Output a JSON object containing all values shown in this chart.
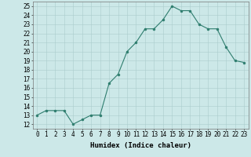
{
  "x": [
    0,
    1,
    2,
    3,
    4,
    5,
    6,
    7,
    8,
    9,
    10,
    11,
    12,
    13,
    14,
    15,
    16,
    17,
    18,
    19,
    20,
    21,
    22,
    23
  ],
  "y": [
    13.0,
    13.5,
    13.5,
    13.5,
    12.0,
    12.5,
    13.0,
    13.0,
    16.5,
    17.5,
    20.0,
    21.0,
    22.5,
    22.5,
    23.5,
    25.0,
    24.5,
    24.5,
    23.0,
    22.5,
    22.5,
    20.5,
    19.0,
    18.8
  ],
  "xlabel": "Humidex (Indice chaleur)",
  "xlim": [
    -0.5,
    23.5
  ],
  "ylim": [
    11.5,
    25.5
  ],
  "yticks": [
    12,
    13,
    14,
    15,
    16,
    17,
    18,
    19,
    20,
    21,
    22,
    23,
    24,
    25
  ],
  "xtick_labels": [
    "0",
    "1",
    "2",
    "3",
    "4",
    "5",
    "6",
    "7",
    "8",
    "9",
    "10",
    "11",
    "12",
    "13",
    "14",
    "15",
    "16",
    "17",
    "18",
    "19",
    "20",
    "21",
    "22",
    "23"
  ],
  "line_color": "#2e7d6e",
  "bg_color": "#cce8e8",
  "grid_color": "#aacccc",
  "label_fontsize": 6.5,
  "tick_fontsize": 5.5
}
